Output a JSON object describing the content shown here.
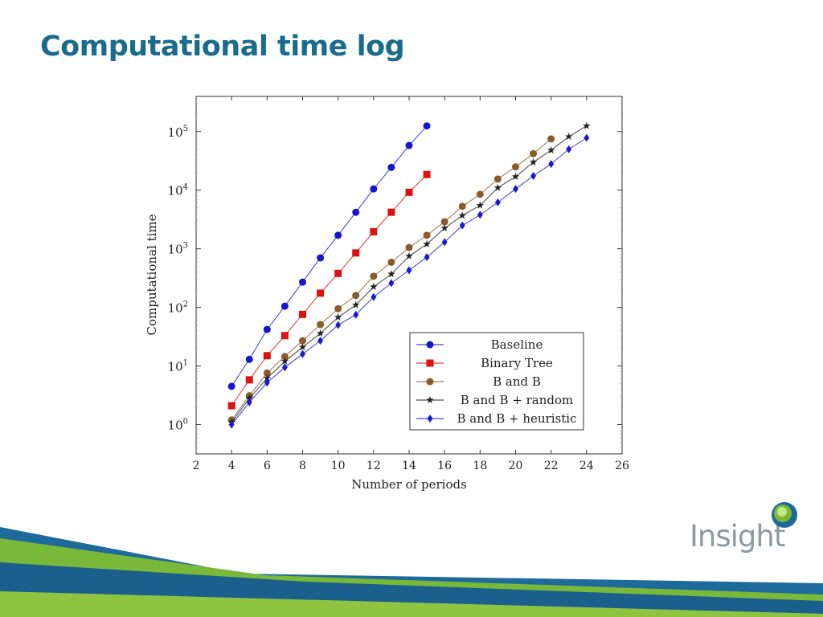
{
  "slide": {
    "title": "Computational time log"
  },
  "branding": {
    "logo_text": "Insight",
    "logo_icon": "insight-globe-logo",
    "colors": {
      "title": "#1a6b8c",
      "wave_blue": "#1e6a9a",
      "wave_green": "#7ab83a"
    }
  },
  "chart_data": {
    "type": "line",
    "title": "",
    "xlabel": "Number of periods",
    "ylabel": "Computational time",
    "xlim": [
      2,
      26
    ],
    "ylim_log10": [
      -0.5,
      5.6
    ],
    "y_scale": "log",
    "grid": false,
    "legend_position": "bottom-right",
    "x_ticks": [
      2,
      4,
      6,
      8,
      10,
      12,
      14,
      16,
      18,
      20,
      22,
      24,
      26
    ],
    "y_tick_exponents": [
      "0",
      "1",
      "2",
      "3",
      "4",
      "5"
    ],
    "y_tick_base": "10",
    "series": [
      {
        "name": "Baseline",
        "color": "#1515cc",
        "marker": "circle",
        "x": [
          4,
          5,
          6,
          7,
          8,
          9,
          10,
          11,
          12,
          13,
          14,
          15
        ],
        "y": [
          4.5,
          13,
          42,
          105,
          270,
          700,
          1700,
          4200,
          10500,
          24500,
          58000,
          125000
        ]
      },
      {
        "name": "Binary Tree",
        "color": "#dd1111",
        "marker": "square",
        "x": [
          4,
          5,
          6,
          7,
          8,
          9,
          10,
          11,
          12,
          13,
          14,
          15
        ],
        "y": [
          2.1,
          5.8,
          15,
          33,
          76,
          175,
          380,
          850,
          1950,
          4200,
          9200,
          18500
        ]
      },
      {
        "name": "B and B",
        "color": "#8b5a2b",
        "marker": "circle",
        "x": [
          4,
          5,
          6,
          7,
          8,
          9,
          10,
          11,
          12,
          13,
          14,
          15,
          16,
          17,
          18,
          19,
          20,
          21,
          22
        ],
        "y": [
          1.2,
          3.1,
          7.6,
          14.5,
          27,
          51,
          95,
          160,
          340,
          590,
          1050,
          1700,
          2900,
          5300,
          8500,
          15500,
          25000,
          42000,
          75000
        ]
      },
      {
        "name": "B and B + random",
        "color": "#222222",
        "marker": "star",
        "x": [
          4,
          5,
          6,
          7,
          8,
          9,
          10,
          11,
          12,
          13,
          14,
          15,
          16,
          17,
          18,
          19,
          20,
          21,
          22,
          23,
          24
        ],
        "y": [
          1.1,
          2.8,
          6.2,
          12,
          21,
          36,
          68,
          110,
          225,
          370,
          750,
          1200,
          2250,
          3700,
          5500,
          11000,
          17000,
          30000,
          48000,
          82000,
          125000
        ]
      },
      {
        "name": "B and B + heuristic",
        "color": "#1a1acc",
        "marker": "diamond",
        "x": [
          4,
          5,
          6,
          7,
          8,
          9,
          10,
          11,
          12,
          13,
          14,
          15,
          16,
          17,
          18,
          19,
          20,
          21,
          22,
          23,
          24
        ],
        "y": [
          1.0,
          2.4,
          5.2,
          9.5,
          16,
          27,
          50,
          75,
          150,
          260,
          430,
          720,
          1300,
          2500,
          3800,
          6200,
          10500,
          17500,
          28000,
          50000,
          78000
        ]
      }
    ]
  }
}
